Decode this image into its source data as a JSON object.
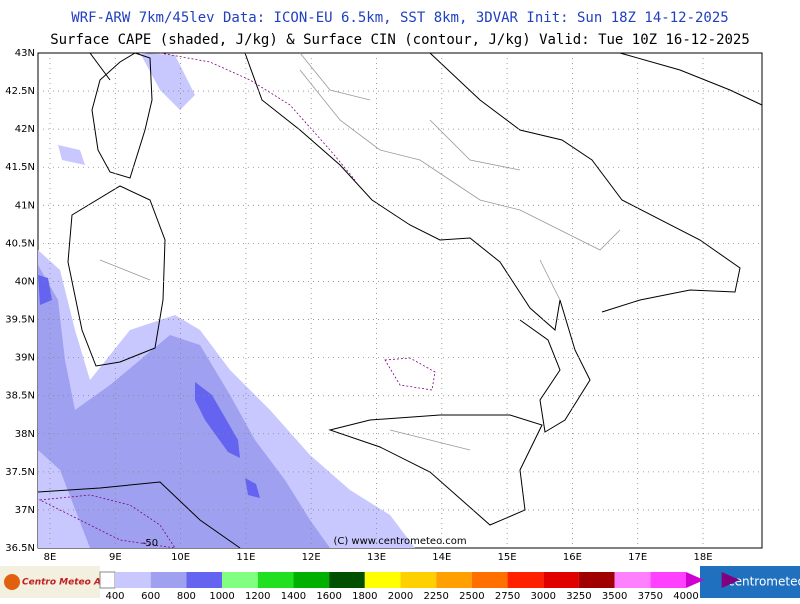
{
  "header": {
    "title": "WRF-ARW 7km/45lev  Data: ICON-EU 6.5km, SST 8km, 3DVAR  Init: Sun 18Z 14-12-2025",
    "subtitle": "Surface CAPE (shaded, J/kg) & Surface CIN (contour, J/kg)  Valid: Tue 10Z 16-12-2025"
  },
  "map": {
    "lat_labels": [
      "43N",
      "42.5N",
      "42N",
      "41.5N",
      "41N",
      "40.5N",
      "40N",
      "39.5N",
      "39N",
      "38.5N",
      "38N",
      "37.5N",
      "37N",
      "36.5N"
    ],
    "lon_labels": [
      "8E",
      "9E",
      "10E",
      "11E",
      "12E",
      "13E",
      "14E",
      "15E",
      "16E",
      "17E",
      "18E"
    ],
    "contour_label": "-50",
    "copyright": "(C) www.centrometeo.com"
  },
  "colorbar": {
    "labels": [
      400,
      600,
      800,
      1000,
      1200,
      1400,
      1600,
      1800,
      2000,
      2250,
      2500,
      2750,
      3000,
      3250,
      3500,
      3750,
      4000
    ],
    "colors": [
      "#c8c8ff",
      "#a0a0f0",
      "#6464f0",
      "#80ff80",
      "#20e020",
      "#00b000",
      "#005000",
      "#ffff00",
      "#ffd000",
      "#ffa000",
      "#ff7000",
      "#ff2000",
      "#e00000",
      "#a00000",
      "#ff80ff",
      "#ff40ff",
      "#d000d0",
      "#800080"
    ]
  },
  "footer": {
    "logo_left": "Centro Meteo Aquileia",
    "logo_right": "centrometeo"
  }
}
